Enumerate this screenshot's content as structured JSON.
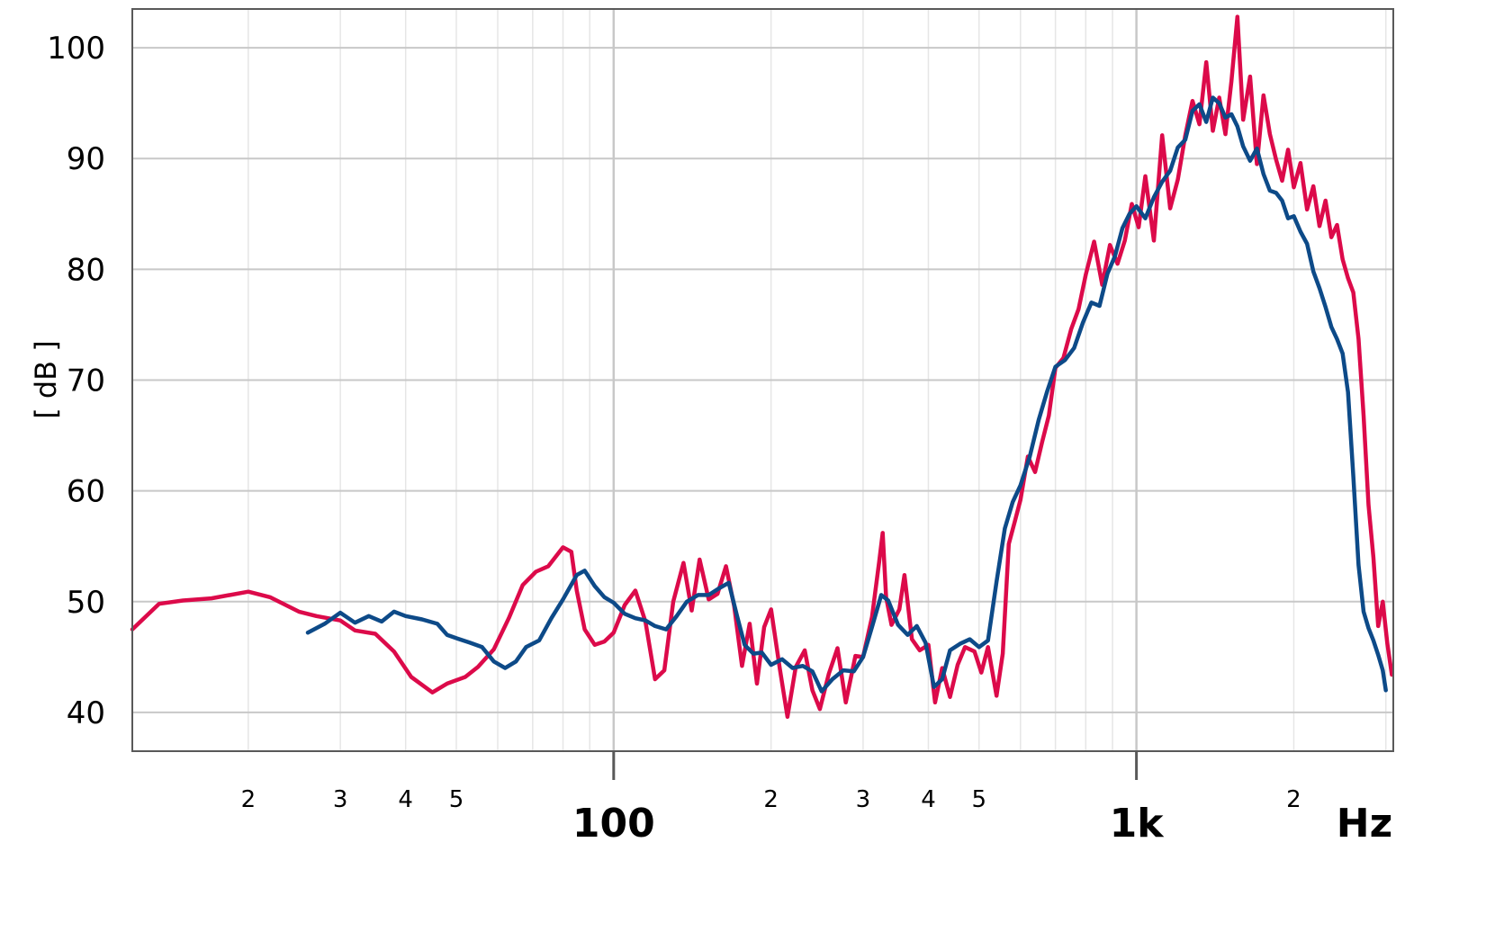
{
  "chart_data": {
    "type": "line",
    "title": "",
    "xlabel": "Hz",
    "ylabel": "[ dB ]",
    "x_scale": "log",
    "xlim": [
      12,
      3100
    ],
    "ylim": [
      36.5,
      103.5
    ],
    "y_ticks": [
      40,
      50,
      60,
      70,
      80,
      90,
      100
    ],
    "x_major_ticks": [
      {
        "value": 100,
        "label": "100"
      },
      {
        "value": 1000,
        "label": "1k"
      }
    ],
    "x_minor_labeled_ticks": [
      {
        "value": 20,
        "label": "2"
      },
      {
        "value": 30,
        "label": "3"
      },
      {
        "value": 40,
        "label": "4"
      },
      {
        "value": 50,
        "label": "5"
      },
      {
        "value": 200,
        "label": "2"
      },
      {
        "value": 300,
        "label": "3"
      },
      {
        "value": 400,
        "label": "4"
      },
      {
        "value": 500,
        "label": "5"
      },
      {
        "value": 2000,
        "label": "2"
      }
    ],
    "grid": true,
    "colors": {
      "series_red": "#dc0a4a",
      "series_blue": "#0d4a88",
      "grid_major": "#c8c8c8",
      "grid_minor": "#e6e6e6",
      "axis": "#595959"
    },
    "series": [
      {
        "color": "#dc0a4a",
        "points": [
          [
            12,
            47.5
          ],
          [
            13.5,
            49.8
          ],
          [
            15,
            50.1
          ],
          [
            17,
            50.3
          ],
          [
            20,
            50.9
          ],
          [
            22,
            50.4
          ],
          [
            25,
            49.1
          ],
          [
            27,
            48.7
          ],
          [
            30,
            48.3
          ],
          [
            32,
            47.4
          ],
          [
            35,
            47.1
          ],
          [
            38,
            45.5
          ],
          [
            41,
            43.2
          ],
          [
            45,
            41.8
          ],
          [
            48,
            42.6
          ],
          [
            52,
            43.2
          ],
          [
            55,
            44.1
          ],
          [
            59,
            45.7
          ],
          [
            63,
            48.5
          ],
          [
            67,
            51.5
          ],
          [
            71,
            52.7
          ],
          [
            75,
            53.2
          ],
          [
            80,
            54.9
          ],
          [
            83,
            54.5
          ],
          [
            85,
            51.0
          ],
          [
            88,
            47.5
          ],
          [
            92,
            46.1
          ],
          [
            96,
            46.4
          ],
          [
            100,
            47.2
          ],
          [
            105,
            49.7
          ],
          [
            110,
            51.0
          ],
          [
            115,
            48.2
          ],
          [
            120,
            43.0
          ],
          [
            125,
            43.8
          ],
          [
            130,
            50.0
          ],
          [
            136,
            53.5
          ],
          [
            141,
            49.2
          ],
          [
            146,
            53.8
          ],
          [
            152,
            50.2
          ],
          [
            158,
            50.7
          ],
          [
            164,
            53.2
          ],
          [
            170,
            49.6
          ],
          [
            176,
            44.2
          ],
          [
            182,
            48.0
          ],
          [
            188,
            42.6
          ],
          [
            194,
            47.7
          ],
          [
            200,
            49.3
          ],
          [
            208,
            43.9
          ],
          [
            215,
            39.6
          ],
          [
            223,
            44.1
          ],
          [
            232,
            45.6
          ],
          [
            240,
            42.0
          ],
          [
            248,
            40.3
          ],
          [
            258,
            43.5
          ],
          [
            268,
            45.8
          ],
          [
            278,
            40.9
          ],
          [
            290,
            45.1
          ],
          [
            300,
            45.0
          ],
          [
            312,
            48.6
          ],
          [
            322,
            53.6
          ],
          [
            327,
            56.2
          ],
          [
            332,
            50.4
          ],
          [
            340,
            47.9
          ],
          [
            352,
            49.3
          ],
          [
            360,
            52.4
          ],
          [
            372,
            46.6
          ],
          [
            385,
            45.6
          ],
          [
            400,
            46.1
          ],
          [
            412,
            40.9
          ],
          [
            425,
            44.0
          ],
          [
            440,
            41.4
          ],
          [
            455,
            44.3
          ],
          [
            470,
            45.9
          ],
          [
            490,
            45.5
          ],
          [
            505,
            43.6
          ],
          [
            520,
            45.9
          ],
          [
            540,
            41.5
          ],
          [
            555,
            45.3
          ],
          [
            570,
            55.2
          ],
          [
            585,
            57.2
          ],
          [
            600,
            59.2
          ],
          [
            620,
            63.1
          ],
          [
            640,
            61.7
          ],
          [
            660,
            64.4
          ],
          [
            680,
            66.8
          ],
          [
            700,
            71.1
          ],
          [
            725,
            72.0
          ],
          [
            750,
            74.6
          ],
          [
            775,
            76.4
          ],
          [
            800,
            79.5
          ],
          [
            830,
            82.5
          ],
          [
            860,
            78.6
          ],
          [
            890,
            82.2
          ],
          [
            920,
            80.5
          ],
          [
            950,
            82.6
          ],
          [
            980,
            85.9
          ],
          [
            1010,
            83.8
          ],
          [
            1040,
            88.4
          ],
          [
            1080,
            82.6
          ],
          [
            1120,
            92.1
          ],
          [
            1160,
            85.5
          ],
          [
            1200,
            88.1
          ],
          [
            1240,
            92.1
          ],
          [
            1280,
            95.2
          ],
          [
            1320,
            93.1
          ],
          [
            1360,
            98.7
          ],
          [
            1400,
            92.5
          ],
          [
            1440,
            95.5
          ],
          [
            1480,
            92.2
          ],
          [
            1520,
            97.0
          ],
          [
            1560,
            102.8
          ],
          [
            1600,
            93.5
          ],
          [
            1650,
            97.4
          ],
          [
            1700,
            89.5
          ],
          [
            1750,
            95.7
          ],
          [
            1800,
            92.2
          ],
          [
            1850,
            89.9
          ],
          [
            1900,
            88.0
          ],
          [
            1950,
            90.8
          ],
          [
            2000,
            87.4
          ],
          [
            2060,
            89.6
          ],
          [
            2120,
            85.4
          ],
          [
            2180,
            87.5
          ],
          [
            2240,
            83.9
          ],
          [
            2300,
            86.2
          ],
          [
            2360,
            82.9
          ],
          [
            2420,
            84.0
          ],
          [
            2480,
            80.9
          ],
          [
            2540,
            79.2
          ],
          [
            2600,
            77.9
          ],
          [
            2660,
            73.7
          ],
          [
            2720,
            66.8
          ],
          [
            2780,
            58.7
          ],
          [
            2840,
            54.0
          ],
          [
            2900,
            47.8
          ],
          [
            2960,
            50.0
          ],
          [
            3020,
            46.2
          ],
          [
            3080,
            43.4
          ]
        ]
      },
      {
        "color": "#0d4a88",
        "points": [
          [
            26,
            47.2
          ],
          [
            28,
            48.0
          ],
          [
            30,
            49.0
          ],
          [
            32,
            48.1
          ],
          [
            34,
            48.7
          ],
          [
            36,
            48.2
          ],
          [
            38,
            49.1
          ],
          [
            40,
            48.7
          ],
          [
            43,
            48.4
          ],
          [
            46,
            48.0
          ],
          [
            48,
            47.0
          ],
          [
            50,
            46.7
          ],
          [
            53,
            46.3
          ],
          [
            56,
            45.9
          ],
          [
            59,
            44.6
          ],
          [
            62,
            44.0
          ],
          [
            65,
            44.6
          ],
          [
            68,
            45.9
          ],
          [
            72,
            46.5
          ],
          [
            76,
            48.5
          ],
          [
            80,
            50.2
          ],
          [
            85,
            52.4
          ],
          [
            88,
            52.8
          ],
          [
            92,
            51.4
          ],
          [
            96,
            50.4
          ],
          [
            100,
            49.9
          ],
          [
            105,
            48.9
          ],
          [
            110,
            48.5
          ],
          [
            115,
            48.3
          ],
          [
            120,
            47.8
          ],
          [
            126,
            47.5
          ],
          [
            132,
            48.7
          ],
          [
            138,
            50.0
          ],
          [
            145,
            50.6
          ],
          [
            152,
            50.6
          ],
          [
            159,
            51.2
          ],
          [
            166,
            51.7
          ],
          [
            172,
            48.8
          ],
          [
            178,
            46.1
          ],
          [
            185,
            45.3
          ],
          [
            192,
            45.4
          ],
          [
            200,
            44.3
          ],
          [
            210,
            44.8
          ],
          [
            220,
            44.0
          ],
          [
            230,
            44.2
          ],
          [
            240,
            43.7
          ],
          [
            250,
            41.9
          ],
          [
            262,
            43.0
          ],
          [
            275,
            43.8
          ],
          [
            288,
            43.7
          ],
          [
            300,
            45.0
          ],
          [
            312,
            47.7
          ],
          [
            325,
            50.6
          ],
          [
            335,
            50.1
          ],
          [
            350,
            47.9
          ],
          [
            365,
            47.0
          ],
          [
            380,
            47.8
          ],
          [
            395,
            46.3
          ],
          [
            410,
            42.3
          ],
          [
            425,
            43.0
          ],
          [
            440,
            45.6
          ],
          [
            460,
            46.2
          ],
          [
            480,
            46.6
          ],
          [
            500,
            45.9
          ],
          [
            520,
            46.5
          ],
          [
            540,
            51.8
          ],
          [
            560,
            56.6
          ],
          [
            580,
            59.0
          ],
          [
            600,
            60.5
          ],
          [
            625,
            63.1
          ],
          [
            650,
            66.4
          ],
          [
            675,
            69.0
          ],
          [
            700,
            71.2
          ],
          [
            730,
            71.8
          ],
          [
            760,
            72.9
          ],
          [
            790,
            75.2
          ],
          [
            820,
            77.0
          ],
          [
            850,
            76.7
          ],
          [
            880,
            79.6
          ],
          [
            910,
            81.2
          ],
          [
            940,
            83.7
          ],
          [
            970,
            85.0
          ],
          [
            1000,
            85.7
          ],
          [
            1040,
            84.6
          ],
          [
            1080,
            86.5
          ],
          [
            1120,
            87.9
          ],
          [
            1160,
            88.9
          ],
          [
            1200,
            91.0
          ],
          [
            1240,
            91.7
          ],
          [
            1280,
            94.3
          ],
          [
            1320,
            94.9
          ],
          [
            1360,
            93.3
          ],
          [
            1400,
            95.5
          ],
          [
            1440,
            95.0
          ],
          [
            1480,
            93.7
          ],
          [
            1520,
            94.0
          ],
          [
            1560,
            92.9
          ],
          [
            1600,
            91.1
          ],
          [
            1650,
            89.8
          ],
          [
            1700,
            90.9
          ],
          [
            1750,
            88.6
          ],
          [
            1800,
            87.1
          ],
          [
            1850,
            86.9
          ],
          [
            1900,
            86.2
          ],
          [
            1950,
            84.6
          ],
          [
            2000,
            84.8
          ],
          [
            2060,
            83.4
          ],
          [
            2120,
            82.3
          ],
          [
            2180,
            79.8
          ],
          [
            2240,
            78.3
          ],
          [
            2300,
            76.6
          ],
          [
            2360,
            74.8
          ],
          [
            2420,
            73.7
          ],
          [
            2480,
            72.4
          ],
          [
            2540,
            68.9
          ],
          [
            2600,
            61.3
          ],
          [
            2660,
            53.3
          ],
          [
            2720,
            49.1
          ],
          [
            2780,
            47.6
          ],
          [
            2840,
            46.5
          ],
          [
            2900,
            45.2
          ],
          [
            2960,
            43.8
          ],
          [
            3000,
            42.0
          ]
        ]
      }
    ]
  }
}
